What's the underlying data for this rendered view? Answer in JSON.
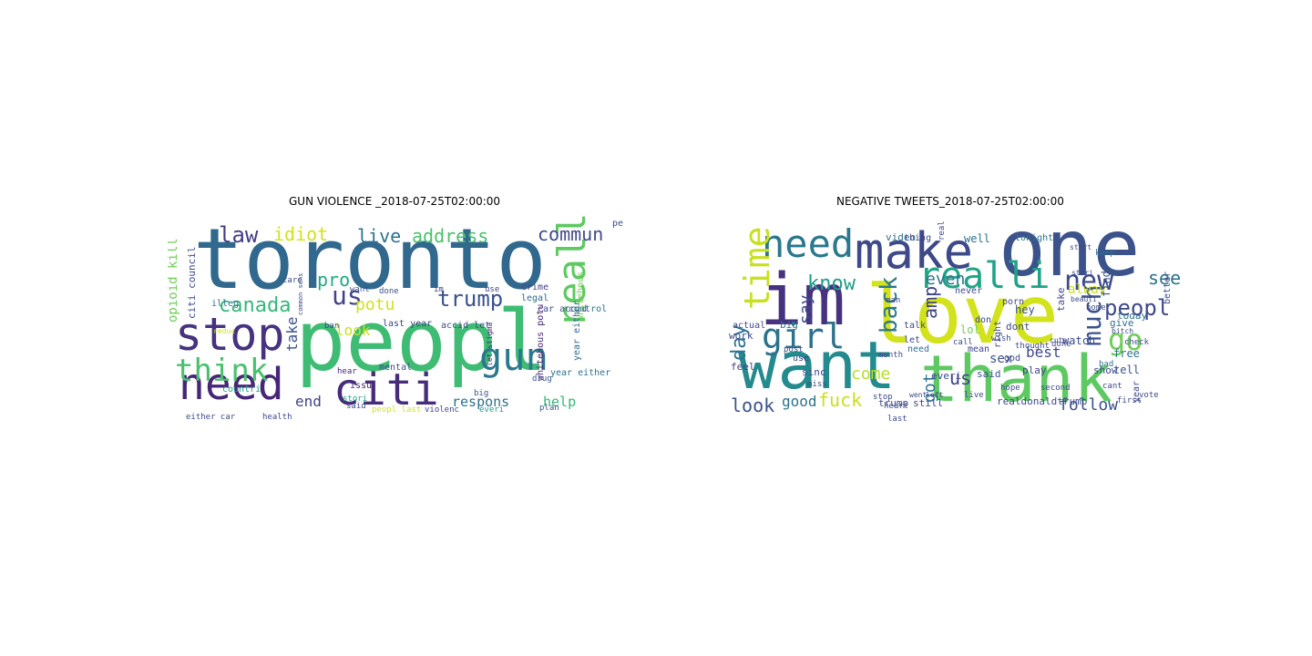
{
  "figure": {
    "left_title": "GUN VIOLENCE _2018-07-25T02:00:00",
    "right_title": "NEGATIVE TWEETS_2018-07-25T02:00:00"
  },
  "palette": {
    "navy": "#3b2d74",
    "blue": "#34608c",
    "teal": "#238a8d",
    "green": "#3fbc73",
    "lime": "#7ad151",
    "yellow": "#d2e21b",
    "purple": "#482677"
  },
  "gun_words": [
    {
      "text": "toronto",
      "size": 92,
      "color": "#31688e",
      "vertical": false
    },
    {
      "text": "peopl",
      "size": 92,
      "color": "#3fbc73",
      "vertical": false
    },
    {
      "text": "stop",
      "size": 50,
      "color": "#46327e",
      "vertical": false
    },
    {
      "text": "need",
      "size": 48,
      "color": "#482677",
      "vertical": false
    },
    {
      "text": "citi",
      "size": 48,
      "color": "#472c7a",
      "vertical": false
    },
    {
      "text": "think",
      "size": 34,
      "color": "#4ac16d",
      "vertical": false
    },
    {
      "text": "gun",
      "size": 42,
      "color": "#2a788e",
      "vertical": false
    },
    {
      "text": "realli",
      "size": 42,
      "color": "#5ec962",
      "vertical": true
    },
    {
      "text": "canada",
      "size": 22,
      "color": "#35b779",
      "vertical": false
    },
    {
      "text": "us",
      "size": 28,
      "color": "#414487",
      "vertical": false
    },
    {
      "text": "law",
      "size": 24,
      "color": "#433e85",
      "vertical": false
    },
    {
      "text": "idiot",
      "size": 20,
      "color": "#d2e21b",
      "vertical": false
    },
    {
      "text": "live",
      "size": 20,
      "color": "#2c728e",
      "vertical": false
    },
    {
      "text": "address",
      "size": 20,
      "color": "#4ac16d",
      "vertical": false
    },
    {
      "text": "commun",
      "size": 20,
      "color": "#3e4989",
      "vertical": false
    },
    {
      "text": "trump",
      "size": 24,
      "color": "#3b528b",
      "vertical": false
    },
    {
      "text": "potu",
      "size": 18,
      "color": "#d2e21b",
      "vertical": false
    },
    {
      "text": "pro",
      "size": 20,
      "color": "#22a884",
      "vertical": false
    },
    {
      "text": "end",
      "size": 16,
      "color": "#414487",
      "vertical": false
    },
    {
      "text": "take",
      "size": 16,
      "color": "#3b528b",
      "vertical": true
    },
    {
      "text": "look",
      "size": 16,
      "color": "#c8e020",
      "vertical": false
    },
    {
      "text": "respons",
      "size": 15,
      "color": "#2c728e",
      "vertical": false
    },
    {
      "text": "help",
      "size": 15,
      "color": "#35b779",
      "vertical": false
    },
    {
      "text": "opioid kill",
      "size": 14,
      "color": "#6ece58",
      "vertical": true
    },
    {
      "text": "citi council",
      "size": 11,
      "color": "#3e4989",
      "vertical": true
    },
    {
      "text": "illeg",
      "size": 10,
      "color": "#2c728e",
      "vertical": false
    },
    {
      "text": "countri",
      "size": 10,
      "color": "#1f9e89",
      "vertical": false
    },
    {
      "text": "mental",
      "size": 10,
      "color": "#3b528b",
      "vertical": false
    },
    {
      "text": "last year",
      "size": 10,
      "color": "#414487",
      "vertical": false
    },
    {
      "text": "accid let",
      "size": 10,
      "color": "#3e4989",
      "vertical": false
    },
    {
      "text": "car accid",
      "size": 10,
      "color": "#3e4989",
      "vertical": false
    },
    {
      "text": "person",
      "size": 10,
      "color": "#3e4989",
      "vertical": false
    },
    {
      "text": "legal",
      "size": 10,
      "color": "#31688e",
      "vertical": false
    },
    {
      "text": "crime",
      "size": 10,
      "color": "#414487",
      "vertical": false
    },
    {
      "text": "control",
      "size": 10,
      "color": "#2c728e",
      "vertical": false
    },
    {
      "text": "whitehous",
      "size": 10,
      "color": "#6ece58",
      "vertical": true
    },
    {
      "text": "whitehous potu",
      "size": 10,
      "color": "#482677",
      "vertical": true
    },
    {
      "text": "year either",
      "size": 10,
      "color": "#2c728e",
      "vertical": false
    },
    {
      "text": "year either",
      "size": 10,
      "color": "#31688e",
      "vertical": true
    },
    {
      "text": "issu",
      "size": 10,
      "color": "#482677",
      "vertical": false
    },
    {
      "text": "said",
      "size": 9,
      "color": "#3e4989",
      "vertical": false
    },
    {
      "text": "big",
      "size": 9,
      "color": "#3b528b",
      "vertical": false
    },
    {
      "text": "stori",
      "size": 9,
      "color": "#20a486",
      "vertical": false
    },
    {
      "text": "hear",
      "size": 9,
      "color": "#482677",
      "vertical": false
    },
    {
      "text": "ban",
      "size": 9,
      "color": "#3e4989",
      "vertical": false
    },
    {
      "text": "care",
      "size": 9,
      "color": "#3e4989",
      "vertical": false
    },
    {
      "text": "want",
      "size": 9,
      "color": "#3b528b",
      "vertical": false
    },
    {
      "text": "done",
      "size": 9,
      "color": "#3b528b",
      "vertical": false
    },
    {
      "text": "im",
      "size": 9,
      "color": "#414487",
      "vertical": false
    },
    {
      "text": "use",
      "size": 9,
      "color": "#414487",
      "vertical": false
    },
    {
      "text": "drug",
      "size": 9,
      "color": "#3b528b",
      "vertical": false
    },
    {
      "text": "plan",
      "size": 9,
      "color": "#3b528b",
      "vertical": false
    },
    {
      "text": "everi",
      "size": 9,
      "color": "#1f9e89",
      "vertical": false
    },
    {
      "text": "violenc",
      "size": 9,
      "color": "#414487",
      "vertical": false
    },
    {
      "text": "peopl last",
      "size": 9,
      "color": "#d2e21b",
      "vertical": false
    },
    {
      "text": "health",
      "size": 9,
      "color": "#3e4989",
      "vertical": false
    },
    {
      "text": "either car",
      "size": 9,
      "color": "#3e4989",
      "vertical": false
    },
    {
      "text": "reduc",
      "size": 8,
      "color": "#d2e21b",
      "vertical": false
    },
    {
      "text": "let stigma",
      "size": 8,
      "color": "#482677",
      "vertical": true
    },
    {
      "text": "common sens",
      "size": 7,
      "color": "#3e4989",
      "vertical": true
    }
  ],
  "neg_words": [
    {
      "text": "one",
      "size": 86,
      "color": "#3b528b",
      "vertical": false
    },
    {
      "text": "love",
      "size": 88,
      "color": "#d2e21b",
      "vertical": false
    },
    {
      "text": "im",
      "size": 78,
      "color": "#46327e",
      "vertical": false
    },
    {
      "text": "want",
      "size": 72,
      "color": "#238a8d",
      "vertical": false
    },
    {
      "text": "thank",
      "size": 70,
      "color": "#5ec962",
      "vertical": false
    },
    {
      "text": "make",
      "size": 54,
      "color": "#3e4989",
      "vertical": false
    },
    {
      "text": "need",
      "size": 42,
      "color": "#2a788e",
      "vertical": false
    },
    {
      "text": "realli",
      "size": 40,
      "color": "#20a486",
      "vertical": false
    },
    {
      "text": "new",
      "size": 30,
      "color": "#3e4989",
      "vertical": false
    },
    {
      "text": "girl",
      "size": 38,
      "color": "#2c728e",
      "vertical": false
    },
    {
      "text": "time",
      "size": 38,
      "color": "#c8e020",
      "vertical": true
    },
    {
      "text": "go",
      "size": 32,
      "color": "#6ece58",
      "vertical": false
    },
    {
      "text": "much",
      "size": 28,
      "color": "#3b528b",
      "vertical": true
    },
    {
      "text": "peopl",
      "size": 24,
      "color": "#3e4989",
      "vertical": false
    },
    {
      "text": "see",
      "size": 20,
      "color": "#2c728e",
      "vertical": false
    },
    {
      "text": "back",
      "size": 26,
      "color": "#2a788e",
      "vertical": true
    },
    {
      "text": "know",
      "size": 22,
      "color": "#1f9e89",
      "vertical": false
    },
    {
      "text": "day",
      "size": 22,
      "color": "#2c728e",
      "vertical": true
    },
    {
      "text": "say",
      "size": 18,
      "color": "#3e4989",
      "vertical": true
    },
    {
      "text": "amp",
      "size": 20,
      "color": "#414487",
      "vertical": true
    },
    {
      "text": "even",
      "size": 18,
      "color": "#2c728e",
      "vertical": false
    },
    {
      "text": "fuck",
      "size": 20,
      "color": "#c8e020",
      "vertical": false
    },
    {
      "text": "got",
      "size": 18,
      "color": "#2c728e",
      "vertical": true
    },
    {
      "text": "come",
      "size": 18,
      "color": "#b5de2b",
      "vertical": false
    },
    {
      "text": "look",
      "size": 20,
      "color": "#3b528b",
      "vertical": false
    },
    {
      "text": "good",
      "size": 16,
      "color": "#2c728e",
      "vertical": false
    },
    {
      "text": "us",
      "size": 20,
      "color": "#414487",
      "vertical": false
    },
    {
      "text": "follow",
      "size": 18,
      "color": "#3b528b",
      "vertical": false
    },
    {
      "text": "best",
      "size": 16,
      "color": "#3e4989",
      "vertical": false
    },
    {
      "text": "alway",
      "size": 14,
      "color": "#c8e020",
      "vertical": false
    },
    {
      "text": "need",
      "size": 10,
      "color": "#2c728e",
      "vertical": false
    },
    {
      "text": "video",
      "size": 11,
      "color": "#2c728e",
      "vertical": false
    },
    {
      "text": "well",
      "size": 12,
      "color": "#2c728e",
      "vertical": false
    },
    {
      "text": "hey",
      "size": 12,
      "color": "#3b528b",
      "vertical": false
    },
    {
      "text": "find",
      "size": 12,
      "color": "#3b528b",
      "vertical": true
    },
    {
      "text": "lol",
      "size": 12,
      "color": "#6ece58",
      "vertical": false
    },
    {
      "text": "dont",
      "size": 11,
      "color": "#3e4989",
      "vertical": false
    },
    {
      "text": "give",
      "size": 11,
      "color": "#2c728e",
      "vertical": false
    },
    {
      "text": "today",
      "size": 11,
      "color": "#2c728e",
      "vertical": false
    },
    {
      "text": "watch",
      "size": 12,
      "color": "#3e4989",
      "vertical": false
    },
    {
      "text": "tell",
      "size": 12,
      "color": "#3b528b",
      "vertical": false
    },
    {
      "text": "free",
      "size": 12,
      "color": "#2c728e",
      "vertical": false
    },
    {
      "text": "show",
      "size": 11,
      "color": "#3e4989",
      "vertical": false
    },
    {
      "text": "play",
      "size": 11,
      "color": "#414487",
      "vertical": false
    },
    {
      "text": "sex",
      "size": 14,
      "color": "#3b528b",
      "vertical": false
    },
    {
      "text": "realdonaldtrump",
      "size": 11,
      "color": "#3e4989",
      "vertical": false
    },
    {
      "text": "still",
      "size": 11,
      "color": "#3e4989",
      "vertical": false
    },
    {
      "text": "trump",
      "size": 11,
      "color": "#3e4989",
      "vertical": false
    },
    {
      "text": "feel",
      "size": 11,
      "color": "#414487",
      "vertical": false
    },
    {
      "text": "sinc",
      "size": 11,
      "color": "#3e4989",
      "vertical": false
    },
    {
      "text": "use",
      "size": 10,
      "color": "#414487",
      "vertical": false
    },
    {
      "text": "work",
      "size": 11,
      "color": "#3e4989",
      "vertical": false
    },
    {
      "text": "actual",
      "size": 10,
      "color": "#3e4989",
      "vertical": false
    },
    {
      "text": "big",
      "size": 11,
      "color": "#2c728e",
      "vertical": false
    },
    {
      "text": "said",
      "size": 11,
      "color": "#3b528b",
      "vertical": false
    },
    {
      "text": "everi",
      "size": 11,
      "color": "#3e4989",
      "vertical": false
    },
    {
      "text": "god",
      "size": 10,
      "color": "#3e4989",
      "vertical": false
    },
    {
      "text": "take",
      "size": 11,
      "color": "#3e4989",
      "vertical": true
    },
    {
      "text": "never",
      "size": 10,
      "color": "#3e4989",
      "vertical": false
    },
    {
      "text": "porn",
      "size": 10,
      "color": "#414487",
      "vertical": false
    },
    {
      "text": "talk",
      "size": 10,
      "color": "#3e4989",
      "vertical": false
    },
    {
      "text": "let",
      "size": 10,
      "color": "#3e4989",
      "vertical": false
    },
    {
      "text": "thing",
      "size": 10,
      "color": "#3e4989",
      "vertical": false
    },
    {
      "text": "tonight",
      "size": 10,
      "color": "#2c728e",
      "vertical": false
    },
    {
      "text": "better",
      "size": 10,
      "color": "#3e4989",
      "vertical": true
    },
    {
      "text": "check",
      "size": 9,
      "color": "#3e4989",
      "vertical": false
    },
    {
      "text": "keep",
      "size": 9,
      "color": "#2c728e",
      "vertical": false
    },
    {
      "text": "home",
      "size": 9,
      "color": "#3e4989",
      "vertical": false
    },
    {
      "text": "right",
      "size": 10,
      "color": "#3e4989",
      "vertical": true
    },
    {
      "text": "mean",
      "size": 10,
      "color": "#414487",
      "vertical": false
    },
    {
      "text": "month",
      "size": 9,
      "color": "#3e4989",
      "vertical": false
    },
    {
      "text": "stop",
      "size": 9,
      "color": "#3e4989",
      "vertical": false
    },
    {
      "text": "miss",
      "size": 9,
      "color": "#3e4989",
      "vertical": false
    },
    {
      "text": "post",
      "size": 9,
      "color": "#3e4989",
      "vertical": false
    },
    {
      "text": "call",
      "size": 9,
      "color": "#3e4989",
      "vertical": false
    },
    {
      "text": "thought",
      "size": 9,
      "color": "#3e4989",
      "vertical": false
    },
    {
      "text": "done",
      "size": 9,
      "color": "#3e4989",
      "vertical": false
    },
    {
      "text": "bad",
      "size": 9,
      "color": "#2c728e",
      "vertical": false
    },
    {
      "text": "cant",
      "size": 9,
      "color": "#3e4989",
      "vertical": false
    },
    {
      "text": "vote",
      "size": 9,
      "color": "#3e4989",
      "vertical": false
    },
    {
      "text": "year",
      "size": 10,
      "color": "#3e4989",
      "vertical": true
    },
    {
      "text": "hope",
      "size": 9,
      "color": "#3e4989",
      "vertical": false
    },
    {
      "text": "second",
      "size": 9,
      "color": "#3e4989",
      "vertical": false
    },
    {
      "text": "live",
      "size": 9,
      "color": "#3e4989",
      "vertical": false
    },
    {
      "text": "last",
      "size": 9,
      "color": "#3e4989",
      "vertical": false
    },
    {
      "text": "heart",
      "size": 9,
      "color": "#3e4989",
      "vertical": false
    },
    {
      "text": "wish",
      "size": 9,
      "color": "#3e4989",
      "vertical": false
    },
    {
      "text": "first",
      "size": 9,
      "color": "#3e4989",
      "vertical": false
    },
    {
      "text": "real",
      "size": 9,
      "color": "#3e4989",
      "vertical": true
    },
    {
      "text": "cute",
      "size": 8,
      "color": "#3e4989",
      "vertical": false
    },
    {
      "text": "bitch",
      "size": 8,
      "color": "#3e4989",
      "vertical": false
    },
    {
      "text": "don",
      "size": 10,
      "color": "#3e4989",
      "vertical": false
    },
    {
      "text": "man",
      "size": 9,
      "color": "#3e4989",
      "vertical": false
    },
    {
      "text": "went",
      "size": 8,
      "color": "#3e4989",
      "vertical": false
    },
    {
      "text": "left",
      "size": 8,
      "color": "#3e4989",
      "vertical": false
    },
    {
      "text": "start",
      "size": 8,
      "color": "#3e4989",
      "vertical": false
    },
    {
      "text": "stori",
      "size": 8,
      "color": "#3e4989",
      "vertical": false
    },
    {
      "text": "beauti",
      "size": 8,
      "color": "#3e4989",
      "vertical": false
    }
  ]
}
